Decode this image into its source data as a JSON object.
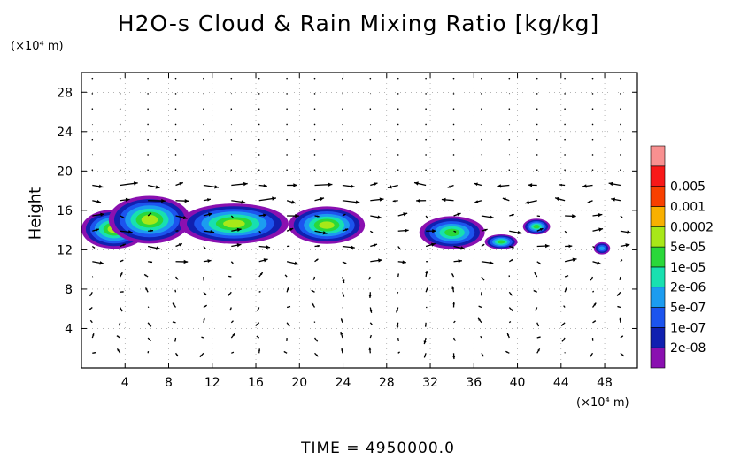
{
  "chart_data": {
    "type": "contour",
    "title": "H2O-s Cloud & Rain Mixing Ratio [kg/kg]",
    "ylabel": "Height",
    "x_unit": "(×10⁴ m)",
    "y_unit": "(×10⁴ m)",
    "xlim": [
      0,
      51
    ],
    "ylim": [
      0,
      30
    ],
    "x_ticks": [
      4,
      8,
      12,
      16,
      20,
      24,
      28,
      32,
      36,
      40,
      44,
      48
    ],
    "y_ticks": [
      4,
      8,
      12,
      16,
      20,
      24,
      28
    ],
    "colorbar": {
      "levels": [
        "2e-08",
        "1e-07",
        "5e-07",
        "2e-06",
        "1e-05",
        "5e-05",
        "0.0002",
        "0.001",
        "0.005"
      ],
      "colors": [
        "#8a10b0",
        "#1020b0",
        "#1c54ee",
        "#1c9cf0",
        "#18e0b0",
        "#2ad83a",
        "#a8e818",
        "#f8b000",
        "#f84000",
        "#f81818",
        "#f89090"
      ]
    },
    "cloud_regions": [
      {
        "x": [
          0,
          6
        ],
        "y": [
          12,
          16.2
        ],
        "max_level": "5e-05"
      },
      {
        "x": [
          2.5,
          10
        ],
        "y": [
          12.5,
          17.6
        ],
        "max_level": "5e-05"
      },
      {
        "x": [
          9,
          19
        ],
        "y": [
          12.5,
          16.8
        ],
        "max_level": "5e-05"
      },
      {
        "x": [
          19,
          26
        ],
        "y": [
          12.5,
          16.5
        ],
        "max_level": "5e-05"
      },
      {
        "x": [
          31,
          37
        ],
        "y": [
          12,
          15.5
        ],
        "max_level": "1e-05"
      },
      {
        "x": [
          37,
          40
        ],
        "y": [
          12,
          13.6
        ],
        "max_level": "1e-05"
      },
      {
        "x": [
          40.5,
          43
        ],
        "y": [
          13.5,
          15.2
        ],
        "max_level": "1e-05"
      },
      {
        "x": [
          47,
          48.5
        ],
        "y": [
          11.5,
          12.8
        ],
        "max_level": "2e-06"
      }
    ],
    "grid": true,
    "legend": "colorbar-right",
    "time_label": "TIME = 4950000.0"
  }
}
